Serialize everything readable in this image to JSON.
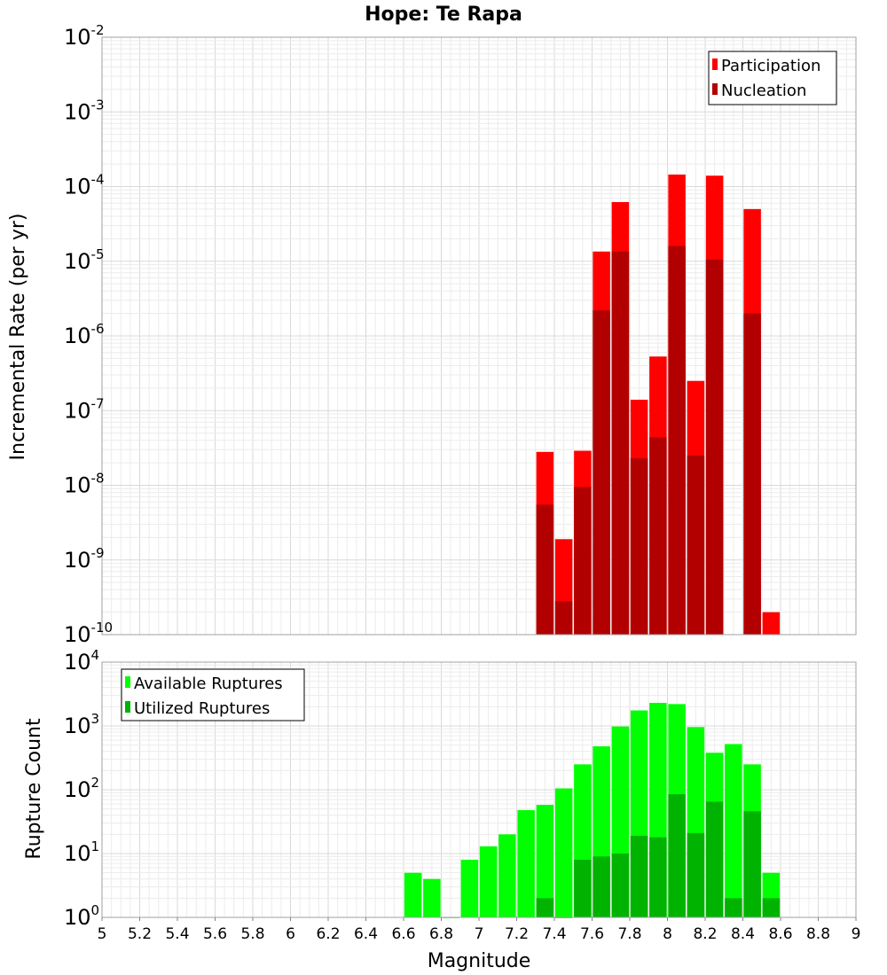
{
  "chart_data": [
    {
      "type": "bar",
      "title": "Hope: Te Rapa",
      "ylabel": "Incremental Rate (per yr)",
      "yscale": "log",
      "ylim_exponents": [
        -10,
        -2
      ],
      "xlim": [
        5,
        9
      ],
      "grid": true,
      "legend_position": "top-right",
      "x": [
        7.35,
        7.45,
        7.55,
        7.65,
        7.75,
        7.85,
        7.95,
        8.05,
        8.15,
        8.25,
        8.35,
        8.45,
        8.55
      ],
      "series": [
        {
          "name": "Participation",
          "color": "#ff0000",
          "values": [
            2.8e-08,
            1.9e-09,
            2.9e-08,
            1.35e-05,
            6.2e-05,
            1.4e-07,
            5.3e-07,
            0.000145,
            2.5e-07,
            0.00014,
            null,
            5e-05,
            2e-10
          ]
        },
        {
          "name": "Nucleation",
          "color": "#b20000",
          "values": [
            5.5e-09,
            2.8e-10,
            9.5e-09,
            2.2e-06,
            1.35e-05,
            2.3e-08,
            4.4e-08,
            1.6e-05,
            2.5e-08,
            1.05e-05,
            null,
            2e-06,
            null
          ]
        }
      ]
    },
    {
      "type": "bar",
      "ylabel": "Rupture Count",
      "xlabel": "Magnitude",
      "yscale": "log",
      "ylim_exponents": [
        0,
        4
      ],
      "xlim": [
        5,
        9
      ],
      "grid": true,
      "legend_position": "top-left",
      "x": [
        6.65,
        6.75,
        6.85,
        6.95,
        7.05,
        7.15,
        7.25,
        7.35,
        7.45,
        7.55,
        7.65,
        7.75,
        7.85,
        7.95,
        8.05,
        8.15,
        8.25,
        8.35,
        8.45,
        8.55
      ],
      "series": [
        {
          "name": "Available Ruptures",
          "color": "#00ff00",
          "values": [
            5,
            4,
            1,
            8,
            13,
            20,
            48,
            58,
            105,
            250,
            480,
            980,
            1750,
            2300,
            2200,
            960,
            380,
            520,
            250,
            5
          ]
        },
        {
          "name": "Utilized Ruptures",
          "color": "#00b300",
          "values": [
            null,
            null,
            null,
            null,
            null,
            null,
            null,
            2,
            1,
            8,
            9,
            10,
            19,
            18,
            85,
            21,
            65,
            2,
            46,
            2
          ]
        }
      ]
    }
  ],
  "x_ticks": [
    "5",
    "5.2",
    "5.4",
    "5.6",
    "5.8",
    "6",
    "6.2",
    "6.4",
    "6.6",
    "6.8",
    "7",
    "7.2",
    "7.4",
    "7.6",
    "7.8",
    "8",
    "8.2",
    "8.4",
    "8.6",
    "8.8",
    "9"
  ]
}
